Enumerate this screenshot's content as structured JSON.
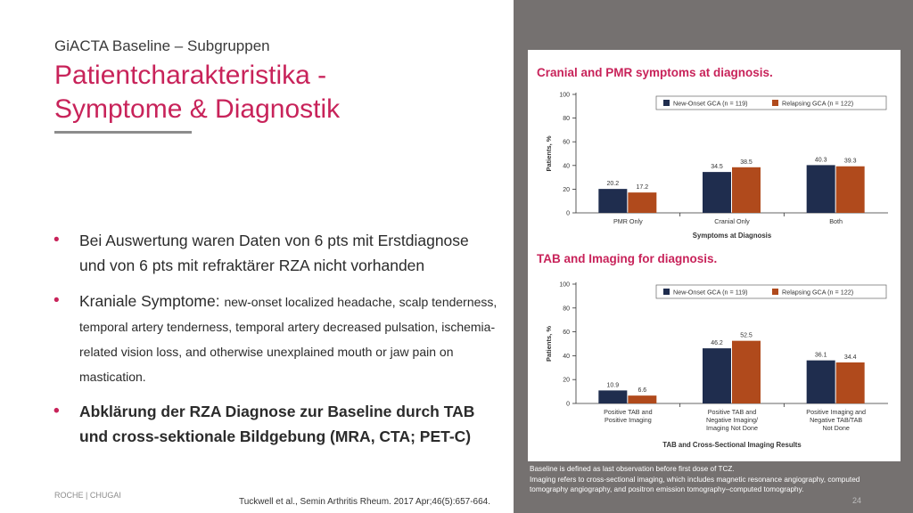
{
  "slide": {
    "subtitle": "GiACTA Baseline – Subgruppen",
    "title": "Patientcharakteristika - Symptome & Diagnostik",
    "bullets": [
      {
        "text": "Bei Auswertung waren Daten von 6 pts mit Erstdiagnose und von 6 pts mit refraktärer RZA nicht vorhanden"
      },
      {
        "lead": "Kraniale Symptome: ",
        "detail": "new-onset localized headache, scalp tenderness, temporal artery tenderness, temporal artery decreased pulsation, ischemia-related vision loss, and otherwise unexplained mouth or jaw pain on mastication."
      },
      {
        "text": "Abklärung der RZA Diagnose zur Baseline durch TAB und cross-sektionale Bildgebung (MRA, CTA; PET-C)"
      }
    ],
    "brand": "ROCHE | CHUGAI",
    "citation": "Tuckwell et al., Semin Arthritis Rheum. 2017 Apr;46(5):657-664.",
    "page_number": "24",
    "footnote_lines": [
      "Baseline is defined as last observation before first dose of TCZ.",
      "Imaging refers to cross-sectional imaging, which includes magnetic resonance angiography, computed",
      "tomography angiography, and positron emission tomography–computed tomography."
    ]
  },
  "colors": {
    "accent": "#c8235a",
    "new_onset": "#1f2d4e",
    "relapsing": "#b04a1c",
    "panel": "#757170"
  },
  "chart_data": [
    {
      "type": "bar",
      "title": "Cranial and PMR symptoms at diagnosis.",
      "xlabel": "Symptoms at Diagnosis",
      "ylabel": "Patients, %",
      "ylim": [
        0,
        100
      ],
      "yticks": [
        0,
        20,
        40,
        60,
        80,
        100
      ],
      "legend_position": "top-right",
      "categories": [
        [
          "PMR Only"
        ],
        [
          "Cranial Only"
        ],
        [
          "Both"
        ]
      ],
      "series": [
        {
          "name": "New-Onset GCA (n = 119)",
          "values": [
            20.2,
            34.5,
            40.3
          ]
        },
        {
          "name": "Relapsing GCA (n = 122)",
          "values": [
            17.2,
            38.5,
            39.3
          ]
        }
      ]
    },
    {
      "type": "bar",
      "title": "TAB and Imaging for diagnosis.",
      "xlabel": "TAB and Cross-Sectional Imaging Results",
      "ylabel": "Patients, %",
      "ylim": [
        0,
        100
      ],
      "yticks": [
        0,
        20,
        40,
        60,
        80,
        100
      ],
      "legend_position": "top-right",
      "categories": [
        [
          "Positive TAB and",
          "Positive Imaging"
        ],
        [
          "Positive TAB and",
          "Negative Imaging/",
          "Imaging Not Done"
        ],
        [
          "Positive Imaging and",
          "Negative TAB/TAB",
          "Not Done"
        ]
      ],
      "series": [
        {
          "name": "New-Onset GCA (n = 119)",
          "values": [
            10.9,
            46.2,
            36.1
          ]
        },
        {
          "name": "Relapsing GCA (n = 122)",
          "values": [
            6.6,
            52.5,
            34.4
          ]
        }
      ]
    }
  ]
}
